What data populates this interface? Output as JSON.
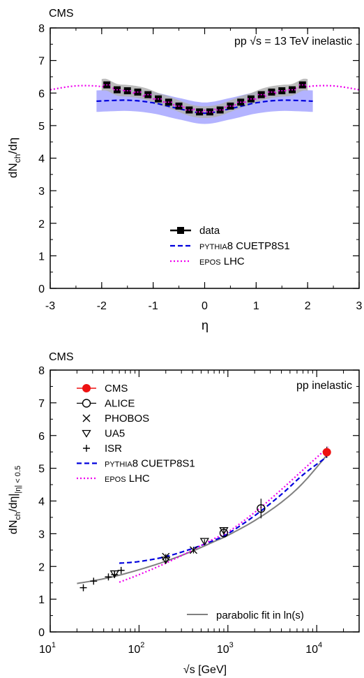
{
  "chart_data": [
    {
      "type": "scatter",
      "label": "CMS",
      "annotation_prefix": "pp ",
      "annotation_sqrt": "√s",
      "annotation_suffix": " = 13 TeV inelastic",
      "xlabel": "η",
      "ylabel_main": "dN",
      "ylabel_sub": "ch",
      "ylabel_tail": "/dη",
      "xlim": [
        -3,
        3
      ],
      "ylim": [
        0,
        8
      ],
      "xticks": [
        -3,
        -2,
        -1,
        0,
        1,
        2,
        3
      ],
      "yticks": [
        0,
        1,
        2,
        3,
        4,
        5,
        6,
        7,
        8
      ],
      "legend_position": "bottom-center",
      "colors": {
        "data": "#000000",
        "pythia": "#0000dd",
        "pythia_band": "#9999ff",
        "epos": "#ee00ee",
        "sys_band": "#b0b0b0"
      },
      "legend": [
        {
          "name_small": "",
          "name_main": "data",
          "style": "data"
        },
        {
          "name_small": "PYTHIA",
          "name_main": "8 CUETP8S1",
          "style": "pythia"
        },
        {
          "name_small": "EPOS",
          "name_main": " LHC",
          "style": "epos"
        }
      ],
      "series": [
        {
          "name": "data",
          "x": [
            -1.9,
            -1.7,
            -1.5,
            -1.3,
            -1.1,
            -0.9,
            -0.7,
            -0.5,
            -0.3,
            -0.1,
            0.1,
            0.3,
            0.5,
            0.7,
            0.9,
            1.1,
            1.3,
            1.5,
            1.7,
            1.9
          ],
          "y": [
            6.25,
            6.1,
            6.07,
            6.03,
            5.95,
            5.82,
            5.72,
            5.6,
            5.48,
            5.42,
            5.42,
            5.48,
            5.6,
            5.72,
            5.82,
            5.95,
            6.03,
            6.07,
            6.1,
            6.25
          ],
          "sys": 0.18
        },
        {
          "name": "PYTHIA8 CUETP8S1",
          "x": [
            -2.1,
            -1.5,
            -1.0,
            -0.5,
            0.0,
            0.5,
            1.0,
            1.5,
            2.1
          ],
          "y": [
            5.75,
            5.78,
            5.7,
            5.52,
            5.38,
            5.52,
            5.7,
            5.78,
            5.75
          ],
          "band": 0.33
        },
        {
          "name": "EPOS LHC",
          "x": [
            -3.0,
            -2.5,
            -2.0,
            -1.5,
            -1.0,
            -0.5,
            0.0,
            0.5,
            1.0,
            1.5,
            2.0,
            2.5,
            3.0
          ],
          "y": [
            6.1,
            6.22,
            6.2,
            6.05,
            5.82,
            5.6,
            5.47,
            5.6,
            5.82,
            6.05,
            6.2,
            6.22,
            6.1
          ]
        }
      ]
    },
    {
      "type": "scatter",
      "label": "CMS",
      "annotation": "pp inelastic",
      "xlabel_sqrt": "√s",
      "xlabel_tail": " [GeV]",
      "ylabel_main": "dN",
      "ylabel_sub": "ch",
      "ylabel_mid": "/dη|",
      "ylabel_sub2": "|η| < 0.5",
      "x_scale": "log",
      "xlim": [
        10,
        30000
      ],
      "ylim": [
        0,
        8
      ],
      "xtick_labels": [
        {
          "value": 10,
          "base": "10",
          "exp": "1"
        },
        {
          "value": 100,
          "base": "10",
          "exp": "2"
        },
        {
          "value": 1000,
          "base": "10",
          "exp": "3"
        },
        {
          "value": 10000,
          "base": "10",
          "exp": "4"
        }
      ],
      "yticks": [
        0,
        1,
        2,
        3,
        4,
        5,
        6,
        7,
        8
      ],
      "legend_position": "top-left",
      "colors": {
        "cms": "#ee1111",
        "pythia": "#0000dd",
        "epos": "#ee00ee",
        "fit": "#808080"
      },
      "legend": [
        {
          "name_small": "",
          "name_main": "CMS",
          "style": "cms"
        },
        {
          "name_small": "",
          "name_main": "ALICE",
          "style": "alice"
        },
        {
          "name_small": "",
          "name_main": "PHOBOS",
          "style": "phobos"
        },
        {
          "name_small": "",
          "name_main": "UA5",
          "style": "ua5"
        },
        {
          "name_small": "",
          "name_main": "ISR",
          "style": "isr"
        },
        {
          "name_small": "PYTHIA",
          "name_main": "8 CUETP8S1",
          "style": "pythia"
        },
        {
          "name_small": "EPOS",
          "name_main": " LHC",
          "style": "epos"
        }
      ],
      "fit_legend": "parabolic fit in ln(s)",
      "series": [
        {
          "name": "CMS",
          "x": [
            13000
          ],
          "y": [
            5.49
          ],
          "err": [
            0.17
          ]
        },
        {
          "name": "ALICE",
          "x": [
            900,
            2360
          ],
          "y": [
            3.02,
            3.77
          ],
          "err": [
            0.09,
            0.3
          ]
        },
        {
          "name": "PHOBOS",
          "x": [
            200,
            410
          ],
          "y": [
            2.3,
            2.5
          ],
          "err": [
            0.08,
            0.1
          ]
        },
        {
          "name": "UA5",
          "x": [
            53,
            200,
            546,
            900
          ],
          "y": [
            1.78,
            2.2,
            2.77,
            3.1
          ],
          "err": [
            0.05,
            0.08,
            0.06,
            0.08
          ]
        },
        {
          "name": "ISR",
          "x": [
            23.6,
            30.8,
            45.2,
            53,
            62.8
          ],
          "y": [
            1.35,
            1.55,
            1.68,
            1.75,
            1.88
          ],
          "err": [
            0.05,
            0.05,
            0.05,
            0.05,
            0.05
          ]
        },
        {
          "name": "PYTHIA8 CUETP8S1",
          "x": [
            60,
            100,
            200,
            400,
            700,
            1000,
            2000,
            4000,
            7000,
            13000
          ],
          "y": [
            2.1,
            2.15,
            2.3,
            2.55,
            2.8,
            3.0,
            3.55,
            4.2,
            4.8,
            5.35
          ]
        },
        {
          "name": "EPOS LHC",
          "x": [
            60,
            100,
            200,
            400,
            700,
            1000,
            2000,
            4000,
            7000,
            13500
          ],
          "y": [
            1.52,
            1.75,
            2.1,
            2.5,
            2.85,
            3.05,
            3.65,
            4.35,
            4.95,
            5.65
          ]
        },
        {
          "name": "parabolic fit in ln(s)",
          "x": [
            20,
            30,
            50,
            100,
            200,
            400,
            700,
            1000,
            2000,
            4000,
            7000,
            13000
          ],
          "y": [
            1.48,
            1.56,
            1.68,
            1.9,
            2.16,
            2.47,
            2.76,
            2.95,
            3.4,
            3.96,
            4.55,
            5.4
          ]
        }
      ]
    }
  ]
}
